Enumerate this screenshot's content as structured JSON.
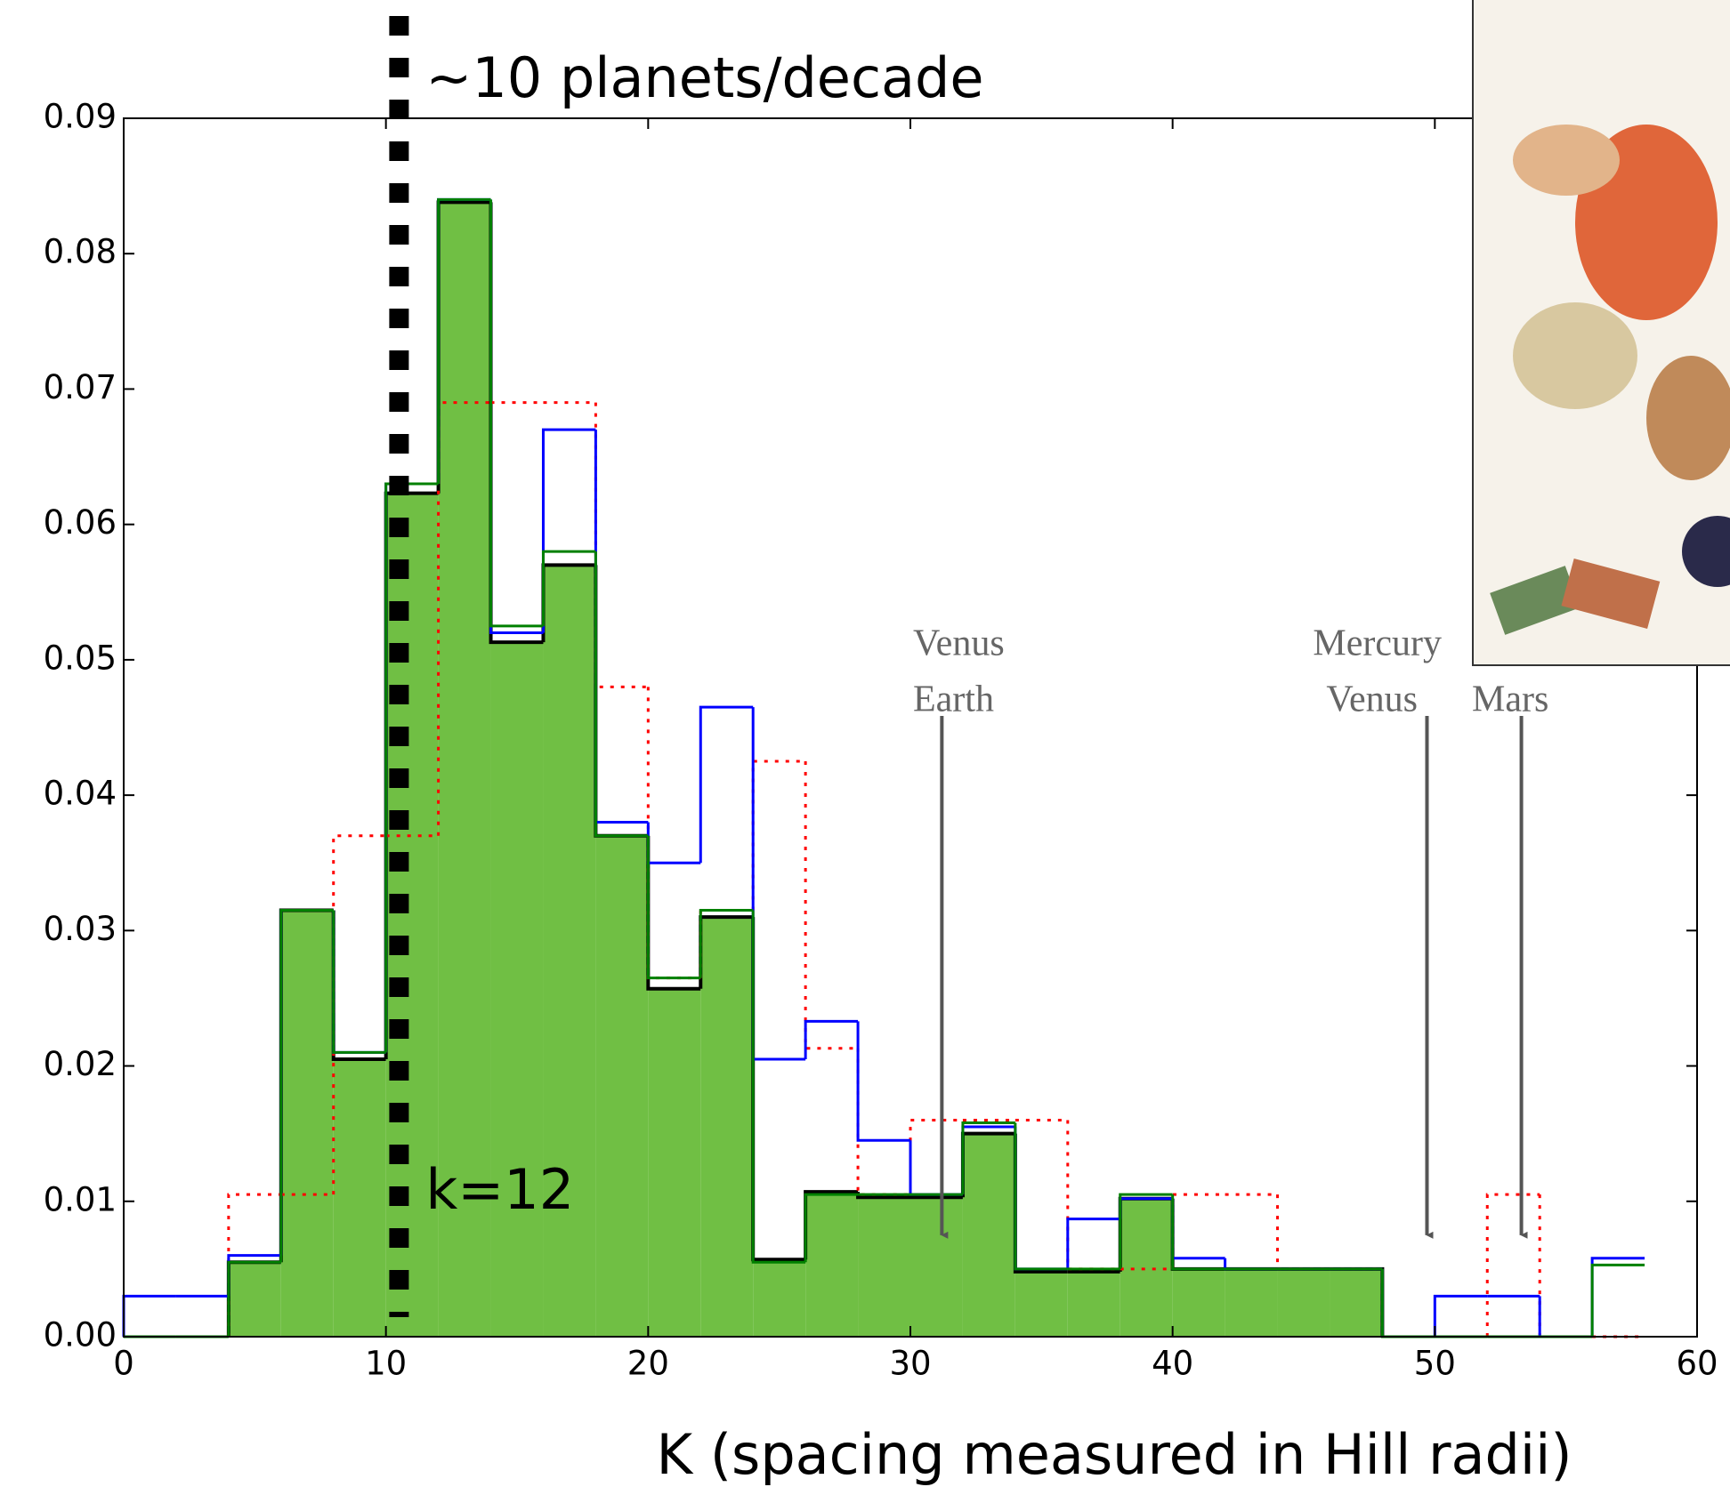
{
  "chart_data": {
    "type": "histogram",
    "xlabel": "K   (spacing measured in Hill radii)",
    "bins": [
      0,
      2,
      4,
      6,
      8,
      10,
      12,
      14,
      16,
      18,
      20,
      22,
      24,
      26,
      28,
      30,
      32,
      34,
      36,
      38,
      40,
      42,
      44,
      46,
      48,
      50,
      52,
      54,
      56,
      58
    ],
    "series": [
      {
        "color": "#70bf44",
        "outline": "#000000",
        "filled": true,
        "values": [
          null,
          null,
          0.0055,
          0.0315,
          0.0205,
          0.0623,
          0.0838,
          0.0513,
          0.057,
          0.037,
          0.0257,
          0.031,
          0.0057,
          0.0107,
          0.0103,
          0.0103,
          0.015,
          0.0048,
          0.0048,
          0.0102,
          0.005,
          0.005,
          0.005,
          0.005,
          null,
          null,
          null,
          null,
          null
        ]
      },
      {
        "color": "#ff0000",
        "dotted": true,
        "values": [
          0,
          0,
          0.0105,
          0.0105,
          0.037,
          0.037,
          0.069,
          0.069,
          0.069,
          0.048,
          0.0265,
          0.0315,
          0.0425,
          0.0213,
          0.0105,
          0.016,
          0.016,
          0.016,
          0.005,
          0.005,
          0.0105,
          0.0105,
          0.005,
          0.005,
          0,
          0,
          0.0105,
          0,
          0
        ]
      },
      {
        "color": "#0000ff",
        "values": [
          0.003,
          0.003,
          0.006,
          0.0315,
          0.021,
          0.063,
          0.084,
          0.052,
          0.067,
          0.038,
          0.035,
          0.0465,
          0.0205,
          0.0233,
          0.0145,
          0.0105,
          0.0155,
          0.005,
          0.0087,
          0.0102,
          0.0058,
          0.005,
          0.005,
          0.005,
          0,
          0.003,
          0.003,
          0,
          0.0058
        ]
      },
      {
        "color": "#008000",
        "values": [
          0,
          0,
          0.0055,
          0.0315,
          0.021,
          0.063,
          0.084,
          0.0525,
          0.058,
          0.037,
          0.0265,
          0.0315,
          0.0055,
          0.0105,
          0.0105,
          0.0105,
          0.0158,
          0.005,
          0.005,
          0.0105,
          0.005,
          0.005,
          0.005,
          0.005,
          0,
          0,
          0,
          0,
          0.0053
        ]
      }
    ],
    "xlim": [
      0,
      60
    ],
    "xticks": [
      0,
      10,
      20,
      30,
      40,
      50,
      60
    ],
    "ylim": [
      0,
      0.09
    ],
    "yticks": [
      {
        "value": 0,
        "label": "0.00"
      },
      {
        "value": 0.01,
        "label": "0.01"
      },
      {
        "value": 0.02,
        "label": "0.02"
      },
      {
        "value": 0.03,
        "label": "0.03"
      },
      {
        "value": 0.04,
        "label": "0.04"
      },
      {
        "value": 0.05,
        "label": "0.05"
      },
      {
        "value": 0.06,
        "label": "0.06"
      },
      {
        "value": 0.07,
        "label": "0.07"
      },
      {
        "value": 0.08,
        "label": "0.08"
      },
      {
        "value": 0.09,
        "label": "0.09"
      }
    ],
    "vline": {
      "x": 10.5,
      "labels": [
        "~10 planets/decade",
        "k=12"
      ]
    },
    "arrows": [
      {
        "labels": [
          "Venus",
          "Earth"
        ],
        "x": 31.2,
        "y": 0.0075
      },
      {
        "labels": [
          "Mercury",
          "Venus"
        ],
        "x": 49.7,
        "y": 0.0075
      },
      {
        "labels": [
          "Mars"
        ],
        "x": 53.3,
        "y": 0.0075
      }
    ]
  }
}
